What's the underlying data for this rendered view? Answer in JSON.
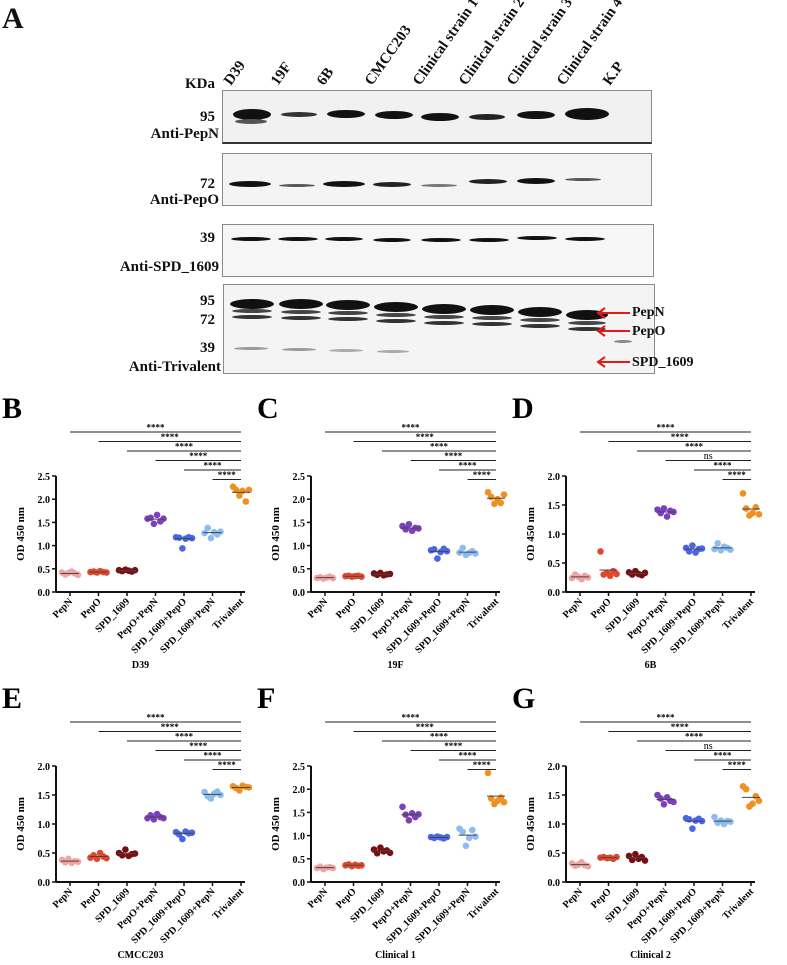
{
  "figure": {
    "panel_a": {
      "letter": "A",
      "kda_label": "KDa",
      "lanes": [
        "D39",
        "19F",
        "6B",
        "CMCC203",
        "Clinical strain 1",
        "Clinical strain 2",
        "Clinical strain 3",
        "Clinical strain 4",
        "K.P"
      ],
      "blots": [
        {
          "antibody": "Anti-PepN",
          "mw": [
            "95"
          ]
        },
        {
          "antibody": "Anti-PepO",
          "mw": [
            "72"
          ]
        },
        {
          "antibody": "Anti-SPD_1609",
          "mw": [
            "39"
          ]
        },
        {
          "antibody": "Anti-Trivalent",
          "mw": [
            "95",
            "72",
            "39"
          ]
        }
      ],
      "arrows": [
        "PepN",
        "PepO",
        "SPD_1609"
      ],
      "arrow_color": "#e01b1b"
    }
  },
  "chart_data": [
    {
      "panel": "B",
      "type": "scatter",
      "title": "",
      "xlabel": "D39",
      "ylabel": "OD 450 nm",
      "ylim": [
        0,
        2.5
      ],
      "yticks": [
        "0.0",
        "0.5",
        "1.0",
        "1.5",
        "2.0",
        "2.5"
      ],
      "categories": [
        "PepN",
        "PepO",
        "SPD_1609",
        "PepO+PepN",
        "SPD_1609+PepO",
        "SPD_1609+PepN",
        "Trivalent"
      ],
      "means": [
        0.4,
        0.43,
        0.46,
        1.57,
        1.15,
        1.28,
        2.15
      ],
      "points": [
        [
          0.42,
          0.38,
          0.41,
          0.44,
          0.4,
          0.37
        ],
        [
          0.43,
          0.44,
          0.42,
          0.45,
          0.43,
          0.42
        ],
        [
          0.47,
          0.45,
          0.48,
          0.46,
          0.44,
          0.47
        ],
        [
          1.58,
          1.6,
          1.47,
          1.66,
          1.52,
          1.58
        ],
        [
          1.18,
          1.17,
          0.94,
          1.15,
          1.18,
          1.16
        ],
        [
          1.27,
          1.38,
          1.16,
          1.29,
          1.24,
          1.3
        ],
        [
          2.27,
          2.2,
          2.08,
          2.18,
          1.95,
          2.2
        ]
      ],
      "significance": [
        {
          "from": "PepN",
          "to": "Trivalent",
          "label": "****"
        },
        {
          "from": "PepO",
          "to": "Trivalent",
          "label": "****"
        },
        {
          "from": "SPD_1609",
          "to": "Trivalent",
          "label": "****"
        },
        {
          "from": "PepO+PepN",
          "to": "Trivalent",
          "label": "****"
        },
        {
          "from": "SPD_1609+PepO",
          "to": "Trivalent",
          "label": "****"
        },
        {
          "from": "SPD_1609+PepN",
          "to": "Trivalent",
          "label": "****"
        }
      ]
    },
    {
      "panel": "C",
      "type": "scatter",
      "title": "",
      "xlabel": "19F",
      "ylabel": "OD 450 nm",
      "ylim": [
        0,
        2.5
      ],
      "yticks": [
        "0.0",
        "0.5",
        "1.0",
        "1.5",
        "2.0",
        "2.5"
      ],
      "categories": [
        "PepN",
        "PepO",
        "SPD_1609",
        "PepO+PepN",
        "SPD_1609+PepO",
        "SPD_1609+PepN",
        "Trivalent"
      ],
      "means": [
        0.31,
        0.34,
        0.38,
        1.38,
        0.87,
        0.86,
        2.02
      ],
      "points": [
        [
          0.3,
          0.32,
          0.29,
          0.31,
          0.33,
          0.3
        ],
        [
          0.34,
          0.35,
          0.33,
          0.34,
          0.35,
          0.33
        ],
        [
          0.4,
          0.37,
          0.41,
          0.36,
          0.38,
          0.39
        ],
        [
          1.42,
          1.35,
          1.46,
          1.32,
          1.38,
          1.37
        ],
        [
          0.9,
          0.92,
          0.72,
          0.86,
          0.93,
          0.88
        ],
        [
          0.85,
          0.95,
          0.8,
          0.84,
          0.88,
          0.83
        ],
        [
          2.15,
          2.05,
          1.9,
          2.0,
          1.92,
          2.1
        ]
      ],
      "significance": [
        {
          "from": "PepN",
          "to": "Trivalent",
          "label": "****"
        },
        {
          "from": "PepO",
          "to": "Trivalent",
          "label": "****"
        },
        {
          "from": "SPD_1609",
          "to": "Trivalent",
          "label": "****"
        },
        {
          "from": "PepO+PepN",
          "to": "Trivalent",
          "label": "****"
        },
        {
          "from": "SPD_1609+PepO",
          "to": "Trivalent",
          "label": "****"
        },
        {
          "from": "SPD_1609+PepN",
          "to": "Trivalent",
          "label": "****"
        }
      ]
    },
    {
      "panel": "D",
      "type": "scatter",
      "title": "",
      "xlabel": "6B",
      "ylabel": "OD 450 nm",
      "ylim": [
        0,
        2.0
      ],
      "yticks": [
        "0.0",
        "0.5",
        "1.0",
        "1.5",
        "2.0"
      ],
      "categories": [
        "PepN",
        "PepO",
        "SPD_1609",
        "PepO+PepN",
        "SPD_1609+PepO",
        "SPD_1609+PepN",
        "Trivalent"
      ],
      "means": [
        0.26,
        0.38,
        0.32,
        1.38,
        0.74,
        0.76,
        1.43
      ],
      "points": [
        [
          0.24,
          0.3,
          0.26,
          0.22,
          0.28,
          0.25
        ],
        [
          0.7,
          0.3,
          0.33,
          0.28,
          0.36,
          0.31
        ],
        [
          0.34,
          0.3,
          0.36,
          0.31,
          0.29,
          0.33
        ],
        [
          1.42,
          1.36,
          1.44,
          1.3,
          1.4,
          1.38
        ],
        [
          0.76,
          0.7,
          0.8,
          0.68,
          0.74,
          0.75
        ],
        [
          0.74,
          0.84,
          0.72,
          0.78,
          0.76,
          0.73
        ],
        [
          1.7,
          1.44,
          1.32,
          1.36,
          1.46,
          1.34
        ]
      ],
      "significance": [
        {
          "from": "PepN",
          "to": "Trivalent",
          "label": "****"
        },
        {
          "from": "PepO",
          "to": "Trivalent",
          "label": "****"
        },
        {
          "from": "SPD_1609",
          "to": "Trivalent",
          "label": "****"
        },
        {
          "from": "PepO+PepN",
          "to": "Trivalent",
          "label": "ns"
        },
        {
          "from": "SPD_1609+PepO",
          "to": "Trivalent",
          "label": "****"
        },
        {
          "from": "SPD_1609+PepN",
          "to": "Trivalent",
          "label": "****"
        }
      ]
    },
    {
      "panel": "E",
      "type": "scatter",
      "title": "",
      "xlabel": "CMCC203",
      "ylabel": "OD 450 nm",
      "ylim": [
        0,
        2.0
      ],
      "yticks": [
        "0.0",
        "0.5",
        "1.0",
        "1.5",
        "2.0"
      ],
      "categories": [
        "PepN",
        "PepO",
        "SPD_1609",
        "PepO+PepN",
        "SPD_1609+PepO",
        "SPD_1609+PepN",
        "Trivalent"
      ],
      "means": [
        0.36,
        0.44,
        0.49,
        1.12,
        0.84,
        1.51,
        1.63
      ],
      "points": [
        [
          0.38,
          0.34,
          0.4,
          0.33,
          0.36,
          0.35
        ],
        [
          0.42,
          0.46,
          0.4,
          0.5,
          0.44,
          0.41
        ],
        [
          0.5,
          0.46,
          0.56,
          0.45,
          0.48,
          0.49
        ],
        [
          1.1,
          1.15,
          1.08,
          1.17,
          1.12,
          1.1
        ],
        [
          0.86,
          0.82,
          0.74,
          0.87,
          0.84,
          0.85
        ],
        [
          1.55,
          1.48,
          1.44,
          1.52,
          1.56,
          1.5
        ],
        [
          1.65,
          1.62,
          1.58,
          1.66,
          1.64,
          1.63
        ]
      ],
      "significance": [
        {
          "from": "PepN",
          "to": "Trivalent",
          "label": "****"
        },
        {
          "from": "PepO",
          "to": "Trivalent",
          "label": "****"
        },
        {
          "from": "SPD_1609",
          "to": "Trivalent",
          "label": "****"
        },
        {
          "from": "PepO+PepN",
          "to": "Trivalent",
          "label": "****"
        },
        {
          "from": "SPD_1609+PepO",
          "to": "Trivalent",
          "label": "****"
        },
        {
          "from": "SPD_1609+PepN",
          "to": "Trivalent",
          "label": "****"
        }
      ]
    },
    {
      "panel": "F",
      "type": "scatter",
      "title": "",
      "xlabel": "Clinical 1",
      "ylabel": "OD 450 nm",
      "ylim": [
        0,
        2.5
      ],
      "yticks": [
        "0.0",
        "0.5",
        "1.0",
        "1.5",
        "2.0",
        "2.5"
      ],
      "categories": [
        "PepN",
        "PepO",
        "SPD_1609",
        "PepO+PepN",
        "SPD_1609+PepO",
        "SPD_1609+PepN",
        "Trivalent"
      ],
      "means": [
        0.31,
        0.36,
        0.67,
        1.45,
        0.96,
        1.01,
        1.85
      ],
      "points": [
        [
          0.3,
          0.33,
          0.28,
          0.31,
          0.32,
          0.3
        ],
        [
          0.36,
          0.38,
          0.34,
          0.37,
          0.35,
          0.36
        ],
        [
          0.7,
          0.62,
          0.74,
          0.66,
          0.68,
          0.63
        ],
        [
          1.62,
          1.45,
          1.33,
          1.48,
          1.4,
          1.46
        ],
        [
          0.97,
          0.95,
          0.98,
          0.96,
          0.94,
          0.97
        ],
        [
          1.15,
          1.08,
          0.78,
          0.95,
          1.12,
          0.98
        ],
        [
          2.35,
          1.8,
          1.68,
          1.75,
          1.82,
          1.72
        ]
      ],
      "significance": [
        {
          "from": "PepN",
          "to": "Trivalent",
          "label": "****"
        },
        {
          "from": "PepO",
          "to": "Trivalent",
          "label": "****"
        },
        {
          "from": "SPD_1609",
          "to": "Trivalent",
          "label": "****"
        },
        {
          "from": "PepO+PepN",
          "to": "Trivalent",
          "label": "****"
        },
        {
          "from": "SPD_1609+PepO",
          "to": "Trivalent",
          "label": "****"
        },
        {
          "from": "SPD_1609+PepN",
          "to": "Trivalent",
          "label": "****"
        }
      ]
    },
    {
      "panel": "G",
      "type": "scatter",
      "title": "",
      "xlabel": "Clinical 2",
      "ylabel": "OD 450 nm",
      "ylim": [
        0,
        2.0
      ],
      "yticks": [
        "0.0",
        "0.5",
        "1.0",
        "1.5",
        "2.0"
      ],
      "categories": [
        "PepN",
        "PepO",
        "SPD_1609",
        "PepO+PepN",
        "SPD_1609+PepO",
        "SPD_1609+PepN",
        "Trivalent"
      ],
      "means": [
        0.3,
        0.42,
        0.42,
        1.42,
        1.05,
        1.05,
        1.46
      ],
      "points": [
        [
          0.32,
          0.28,
          0.3,
          0.34,
          0.29,
          0.27
        ],
        [
          0.42,
          0.43,
          0.41,
          0.42,
          0.4,
          0.43
        ],
        [
          0.45,
          0.38,
          0.48,
          0.4,
          0.43,
          0.37
        ],
        [
          1.5,
          1.44,
          1.34,
          1.46,
          1.4,
          1.38
        ],
        [
          1.1,
          1.08,
          0.92,
          1.06,
          1.09,
          1.05
        ],
        [
          1.12,
          1.02,
          1.06,
          1.0,
          1.05,
          1.04
        ],
        [
          1.65,
          1.6,
          1.3,
          1.35,
          1.48,
          1.4
        ]
      ],
      "significance": [
        {
          "from": "PepN",
          "to": "Trivalent",
          "label": "****"
        },
        {
          "from": "PepO",
          "to": "Trivalent",
          "label": "****"
        },
        {
          "from": "SPD_1609",
          "to": "Trivalent",
          "label": "****"
        },
        {
          "from": "PepO+PepN",
          "to": "Trivalent",
          "label": "ns"
        },
        {
          "from": "SPD_1609+PepO",
          "to": "Trivalent",
          "label": "****"
        },
        {
          "from": "SPD_1609+PepN",
          "to": "Trivalent",
          "label": "****"
        }
      ]
    }
  ],
  "series_colors": [
    "#f2a3a3",
    "#e0482c",
    "#7a0f12",
    "#7b3fbf",
    "#4a66e6",
    "#8cbcf0",
    "#f0901e"
  ]
}
